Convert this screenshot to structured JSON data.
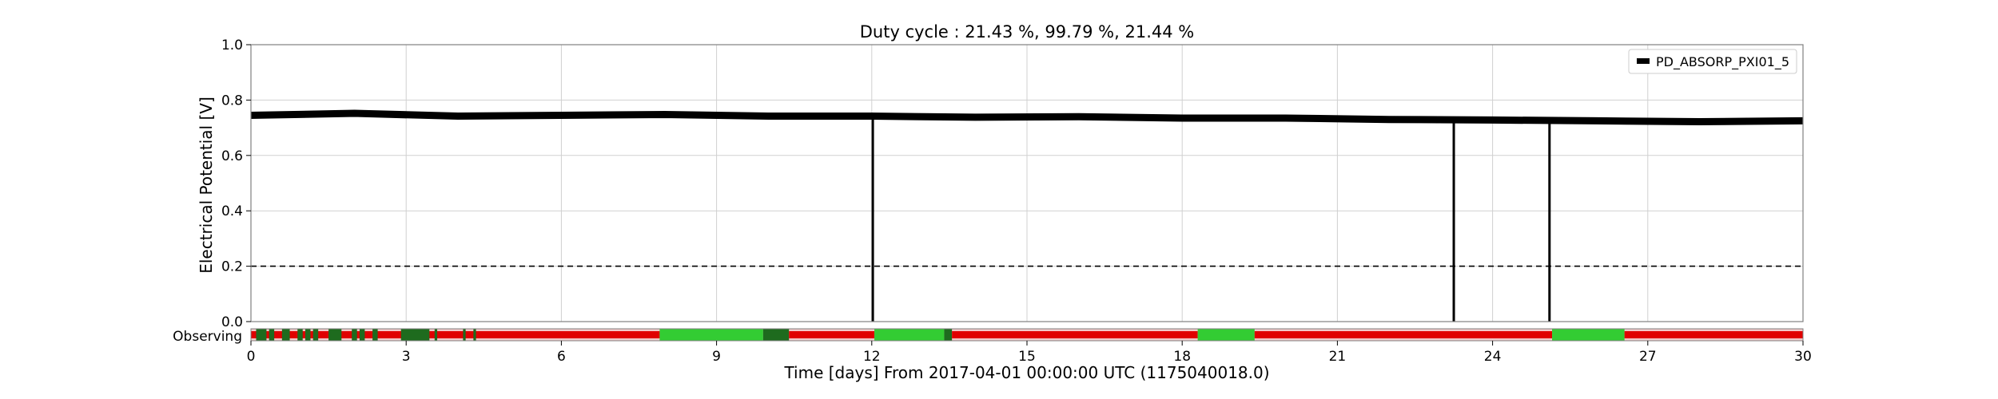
{
  "chart_data": {
    "type": "line",
    "title": "Duty cycle : 21.43 %, 99.79 %, 21.44 %",
    "xlabel": "Time [days] From 2017-04-01 00:00:00 UTC (1175040018.0)",
    "ylabel": "Electrical Potential [V]",
    "xlim": [
      0,
      30
    ],
    "ylim": [
      0,
      1
    ],
    "xticks": [
      "0",
      "3",
      "6",
      "9",
      "12",
      "15",
      "18",
      "21",
      "24",
      "27",
      "30"
    ],
    "yticks": [
      "0.0",
      "0.2",
      "0.4",
      "0.6",
      "0.8",
      "1.0"
    ],
    "grid": true,
    "legend_position": "top-right",
    "threshold": 0.2,
    "series": [
      {
        "name": "PD_ABSORP_PXI01_5",
        "color": "#000000",
        "baseline": [
          [
            0,
            0.745
          ],
          [
            2,
            0.752
          ],
          [
            4,
            0.742
          ],
          [
            6,
            0.745
          ],
          [
            8,
            0.748
          ],
          [
            10,
            0.742
          ],
          [
            12,
            0.742
          ],
          [
            14,
            0.738
          ],
          [
            16,
            0.74
          ],
          [
            18,
            0.735
          ],
          [
            20,
            0.735
          ],
          [
            22,
            0.73
          ],
          [
            24,
            0.728
          ],
          [
            26,
            0.725
          ],
          [
            28,
            0.722
          ],
          [
            30,
            0.725
          ]
        ],
        "dropouts": [
          [
            12.02,
            0.0
          ],
          [
            23.25,
            0.0
          ],
          [
            25.1,
            0.0
          ]
        ]
      }
    ],
    "state_bar": {
      "label": "Observing",
      "colors": {
        "red": "#e00000",
        "green": "#33cc33",
        "darkgreen": "#1e6b1e"
      },
      "segments": [
        {
          "start": 0,
          "end": 7.9,
          "state": "red"
        },
        {
          "start": 0.1,
          "end": 0.3,
          "state": "darkgreen"
        },
        {
          "start": 0.35,
          "end": 0.45,
          "state": "darkgreen"
        },
        {
          "start": 0.6,
          "end": 0.75,
          "state": "darkgreen"
        },
        {
          "start": 0.9,
          "end": 1.0,
          "state": "darkgreen"
        },
        {
          "start": 1.05,
          "end": 1.15,
          "state": "darkgreen"
        },
        {
          "start": 1.2,
          "end": 1.3,
          "state": "darkgreen"
        },
        {
          "start": 1.5,
          "end": 1.75,
          "state": "darkgreen"
        },
        {
          "start": 1.95,
          "end": 2.05,
          "state": "darkgreen"
        },
        {
          "start": 2.1,
          "end": 2.2,
          "state": "darkgreen"
        },
        {
          "start": 2.35,
          "end": 2.45,
          "state": "darkgreen"
        },
        {
          "start": 2.9,
          "end": 3.45,
          "state": "darkgreen"
        },
        {
          "start": 3.55,
          "end": 3.6,
          "state": "darkgreen"
        },
        {
          "start": 4.1,
          "end": 4.15,
          "state": "darkgreen"
        },
        {
          "start": 4.3,
          "end": 4.35,
          "state": "darkgreen"
        },
        {
          "start": 7.9,
          "end": 9.9,
          "state": "green"
        },
        {
          "start": 9.9,
          "end": 10.4,
          "state": "darkgreen"
        },
        {
          "start": 10.4,
          "end": 12.05,
          "state": "red"
        },
        {
          "start": 12.05,
          "end": 13.4,
          "state": "green"
        },
        {
          "start": 13.4,
          "end": 13.55,
          "state": "darkgreen"
        },
        {
          "start": 13.55,
          "end": 18.3,
          "state": "red"
        },
        {
          "start": 18.3,
          "end": 19.4,
          "state": "green"
        },
        {
          "start": 19.4,
          "end": 25.15,
          "state": "red"
        },
        {
          "start": 25.15,
          "end": 26.55,
          "state": "green"
        },
        {
          "start": 26.55,
          "end": 30,
          "state": "red"
        }
      ]
    }
  }
}
